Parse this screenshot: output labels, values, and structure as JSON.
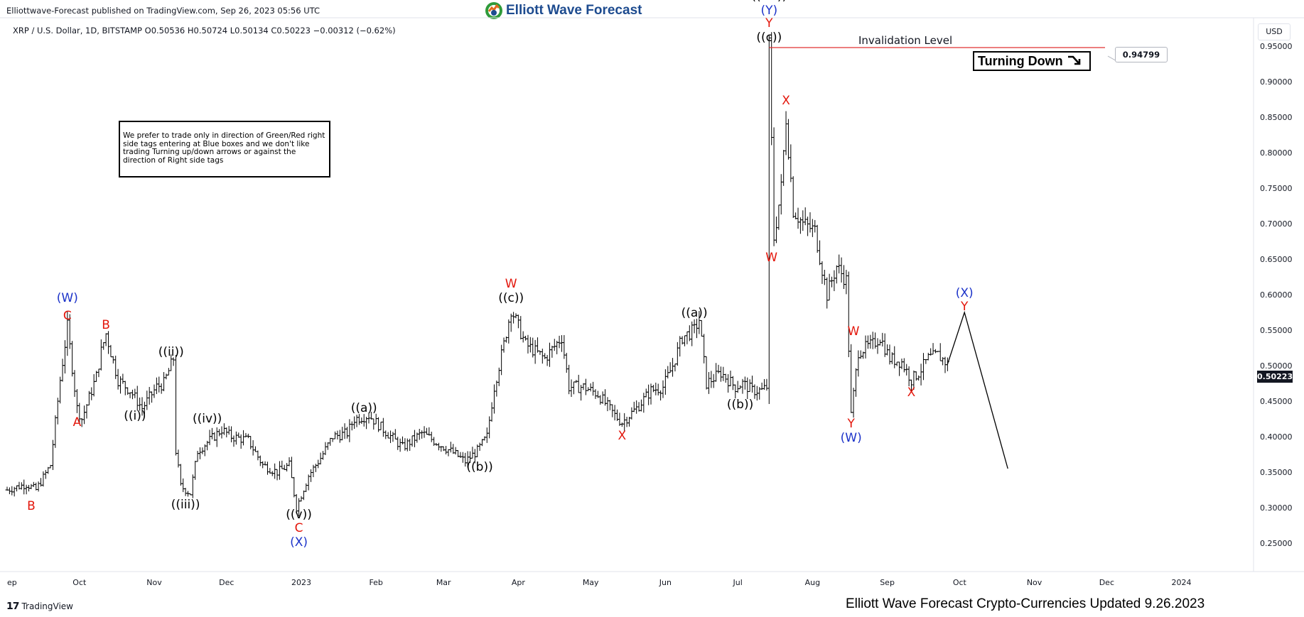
{
  "header": {
    "published": "Elliottwave-Forecast published on TradingView.com, Sep 26, 2023 05:56 UTC",
    "brand": "Elliott Wave Forecast",
    "symbol_line": "XRP / U.S. Dollar, 1D, BITSTAMP  O0.50536  H0.50724  L0.50134  C0.50223  −0.00312 (−0.62%)",
    "currency": "USD"
  },
  "note": "We prefer to trade only in direction of Green/Red right side tags entering at Blue boxes and we don't like trading Turning up/down arrows or against the direction of Right side tags",
  "turning_down": "Turning Down",
  "invalidation_label": "Invalidation Level",
  "footer": {
    "tv_brand": "TradingView",
    "title": "Elliott Wave Forecast Crypto-Currencies Updated 9.26.2023"
  },
  "colors": {
    "wave_red": "#e3160b",
    "wave_blue": "#1c33c9",
    "wave_black": "#000000",
    "invalidation": "#e03131",
    "brand": "#1d4b8f"
  },
  "chart_data": {
    "type": "ohlc",
    "symbol": "XRP / U.S. Dollar",
    "timeframe": "1D",
    "exchange": "BITSTAMP",
    "ohlc": {
      "open": 0.50536,
      "high": 0.50724,
      "low": 0.50134,
      "close": 0.50223,
      "change": -0.00312,
      "change_pct": -0.62
    },
    "last_price_label": "0.50223",
    "invalidation_level": 0.94799,
    "invalidation_level_label": "0.94799",
    "y_range": [
      0.21,
      0.99
    ],
    "y_ticks": [
      "0.25000",
      "0.30000",
      "0.35000",
      "0.40000",
      "0.45000",
      "0.50000",
      "0.55000",
      "0.60000",
      "0.65000",
      "0.70000",
      "0.75000",
      "0.80000",
      "0.85000",
      "0.90000",
      "0.95000"
    ],
    "x_range": [
      "2022-09-01",
      "2024-01-25"
    ],
    "x_ticks": [
      {
        "date": "2022-09-01",
        "label": "ep"
      },
      {
        "date": "2022-10-01",
        "label": "Oct"
      },
      {
        "date": "2022-11-01",
        "label": "Nov"
      },
      {
        "date": "2022-12-01",
        "label": "Dec"
      },
      {
        "date": "2023-01-01",
        "label": "2023"
      },
      {
        "date": "2023-02-01",
        "label": "Feb"
      },
      {
        "date": "2023-03-01",
        "label": "Mar"
      },
      {
        "date": "2023-04-01",
        "label": "Apr"
      },
      {
        "date": "2023-05-01",
        "label": "May"
      },
      {
        "date": "2023-06-01",
        "label": "Jun"
      },
      {
        "date": "2023-07-01",
        "label": "Jul"
      },
      {
        "date": "2023-08-01",
        "label": "Aug"
      },
      {
        "date": "2023-09-01",
        "label": "Sep"
      },
      {
        "date": "2023-10-01",
        "label": "Oct"
      },
      {
        "date": "2023-11-01",
        "label": "Nov"
      },
      {
        "date": "2023-12-01",
        "label": "Dec"
      },
      {
        "date": "2024-01-01",
        "label": "2024"
      }
    ],
    "price_path": [
      [
        "2022-09-01",
        0.325
      ],
      [
        "2022-09-09",
        0.333
      ],
      [
        "2022-09-13",
        0.325
      ],
      [
        "2022-09-19",
        0.36
      ],
      [
        "2022-09-23",
        0.48
      ],
      [
        "2022-09-26",
        0.555
      ],
      [
        "2022-09-30",
        0.44
      ],
      [
        "2022-10-02",
        0.425
      ],
      [
        "2022-10-08",
        0.485
      ],
      [
        "2022-10-10",
        0.52
      ],
      [
        "2022-10-12",
        0.545
      ],
      [
        "2022-10-17",
        0.48
      ],
      [
        "2022-10-22",
        0.465
      ],
      [
        "2022-10-27",
        0.44
      ],
      [
        "2022-11-02",
        0.47
      ],
      [
        "2022-11-05",
        0.475
      ],
      [
        "2022-11-09",
        0.51
      ],
      [
        "2022-11-10",
        0.38
      ],
      [
        "2022-11-12",
        0.33
      ],
      [
        "2022-11-16",
        0.32
      ],
      [
        "2022-11-19",
        0.38
      ],
      [
        "2022-11-24",
        0.395
      ],
      [
        "2022-11-29",
        0.41
      ],
      [
        "2022-12-03",
        0.4
      ],
      [
        "2022-12-10",
        0.395
      ],
      [
        "2022-12-16",
        0.36
      ],
      [
        "2022-12-22",
        0.35
      ],
      [
        "2022-12-27",
        0.36
      ],
      [
        "2022-12-30",
        0.3
      ],
      [
        "2023-01-04",
        0.345
      ],
      [
        "2023-01-09",
        0.37
      ],
      [
        "2023-01-14",
        0.4
      ],
      [
        "2023-01-20",
        0.405
      ],
      [
        "2023-01-23",
        0.425
      ],
      [
        "2023-01-29",
        0.43
      ],
      [
        "2023-02-04",
        0.41
      ],
      [
        "2023-02-12",
        0.385
      ],
      [
        "2023-02-20",
        0.405
      ],
      [
        "2023-02-27",
        0.39
      ],
      [
        "2023-03-06",
        0.375
      ],
      [
        "2023-03-10",
        0.365
      ],
      [
        "2023-03-15",
        0.38
      ],
      [
        "2023-03-19",
        0.4
      ],
      [
        "2023-03-22",
        0.47
      ],
      [
        "2023-03-26",
        0.53
      ],
      [
        "2023-03-29",
        0.58
      ],
      [
        "2023-04-04",
        0.53
      ],
      [
        "2023-04-12",
        0.51
      ],
      [
        "2023-04-19",
        0.54
      ],
      [
        "2023-04-22",
        0.47
      ],
      [
        "2023-04-28",
        0.47
      ],
      [
        "2023-05-04",
        0.46
      ],
      [
        "2023-05-11",
        0.43
      ],
      [
        "2023-05-14",
        0.42
      ],
      [
        "2023-05-20",
        0.44
      ],
      [
        "2023-05-26",
        0.465
      ],
      [
        "2023-05-31",
        0.47
      ],
      [
        "2023-06-04",
        0.5
      ],
      [
        "2023-06-08",
        0.54
      ],
      [
        "2023-06-13",
        0.55
      ],
      [
        "2023-06-15",
        0.565
      ],
      [
        "2023-06-18",
        0.475
      ],
      [
        "2023-06-24",
        0.49
      ],
      [
        "2023-06-30",
        0.47
      ],
      [
        "2023-07-03",
        0.475
      ],
      [
        "2023-07-07",
        0.465
      ],
      [
        "2023-07-11",
        0.465
      ],
      [
        "2023-07-13",
        0.47
      ],
      [
        "2023-07-14",
        0.94799
      ],
      [
        "2023-07-16",
        0.68
      ],
      [
        "2023-07-19",
        0.75
      ],
      [
        "2023-07-21",
        0.85
      ],
      [
        "2023-07-24",
        0.72
      ],
      [
        "2023-07-28",
        0.7
      ],
      [
        "2023-08-02",
        0.69
      ],
      [
        "2023-08-07",
        0.6
      ],
      [
        "2023-08-11",
        0.64
      ],
      [
        "2023-08-15",
        0.62
      ],
      [
        "2023-08-17",
        0.43
      ],
      [
        "2023-08-20",
        0.52
      ],
      [
        "2023-08-26",
        0.53
      ],
      [
        "2023-08-29",
        0.54
      ],
      [
        "2023-09-02",
        0.51
      ],
      [
        "2023-09-07",
        0.505
      ],
      [
        "2023-09-11",
        0.48
      ],
      [
        "2023-09-14",
        0.49
      ],
      [
        "2023-09-18",
        0.51
      ],
      [
        "2023-09-22",
        0.515
      ],
      [
        "2023-09-26",
        0.50223
      ]
    ],
    "projection": [
      [
        "2023-09-26",
        0.50223
      ],
      [
        "2023-10-03",
        0.575
      ],
      [
        "2023-10-21",
        0.355
      ]
    ],
    "wave_labels": [
      {
        "text": "B",
        "date": "2022-09-11",
        "price": 0.297,
        "color": "red"
      },
      {
        "text": "C",
        "date": "2022-09-26",
        "price": 0.565,
        "color": "red"
      },
      {
        "text": "(W)",
        "date": "2022-09-26",
        "price": 0.59,
        "color": "blue"
      },
      {
        "text": "A",
        "date": "2022-09-30",
        "price": 0.415,
        "color": "red"
      },
      {
        "text": "B",
        "date": "2022-10-12",
        "price": 0.552,
        "color": "red"
      },
      {
        "text": "((i))",
        "date": "2022-10-24",
        "price": 0.424,
        "color": "black"
      },
      {
        "text": "((ii))",
        "date": "2022-11-08",
        "price": 0.514,
        "color": "black"
      },
      {
        "text": "((iii))",
        "date": "2022-11-14",
        "price": 0.299,
        "color": "black"
      },
      {
        "text": "((iv))",
        "date": "2022-11-23",
        "price": 0.42,
        "color": "black"
      },
      {
        "text": "((v))",
        "date": "2022-12-31",
        "price": 0.285,
        "color": "black"
      },
      {
        "text": "C",
        "date": "2022-12-31",
        "price": 0.266,
        "color": "red"
      },
      {
        "text": "(X)",
        "date": "2022-12-31",
        "price": 0.246,
        "color": "blue"
      },
      {
        "text": "((a))",
        "date": "2023-01-27",
        "price": 0.435,
        "color": "black"
      },
      {
        "text": "((b))",
        "date": "2023-03-16",
        "price": 0.352,
        "color": "black"
      },
      {
        "text": "((c))",
        "date": "2023-03-29",
        "price": 0.59,
        "color": "black"
      },
      {
        "text": "W",
        "date": "2023-03-29",
        "price": 0.61,
        "color": "red"
      },
      {
        "text": "X",
        "date": "2023-05-14",
        "price": 0.396,
        "color": "red"
      },
      {
        "text": "((a))",
        "date": "2023-06-13",
        "price": 0.569,
        "color": "black"
      },
      {
        "text": "((b))",
        "date": "2023-07-02",
        "price": 0.44,
        "color": "black"
      },
      {
        "text": "((c))",
        "date": "2023-07-14",
        "price": 0.957,
        "color": "black"
      },
      {
        "text": "Y",
        "date": "2023-07-14",
        "price": 0.977,
        "color": "red"
      },
      {
        "text": "(Y)",
        "date": "2023-07-14",
        "price": 0.995,
        "color": "blue"
      },
      {
        "text": "((XX))",
        "date": "2023-07-14",
        "price": 1.015,
        "color": "black"
      },
      {
        "text": "X",
        "date": "2023-07-21",
        "price": 0.868,
        "color": "red"
      },
      {
        "text": "W",
        "date": "2023-07-15",
        "price": 0.647,
        "color": "red"
      },
      {
        "text": "W",
        "date": "2023-08-18",
        "price": 0.543,
        "color": "red"
      },
      {
        "text": "Y",
        "date": "2023-08-17",
        "price": 0.413,
        "color": "red"
      },
      {
        "text": "(W)",
        "date": "2023-08-17",
        "price": 0.393,
        "color": "blue"
      },
      {
        "text": "X",
        "date": "2023-09-11",
        "price": 0.457,
        "color": "red"
      },
      {
        "text": "Y",
        "date": "2023-10-03",
        "price": 0.578,
        "color": "red"
      },
      {
        "text": "(X)",
        "date": "2023-10-03",
        "price": 0.597,
        "color": "blue"
      }
    ]
  }
}
